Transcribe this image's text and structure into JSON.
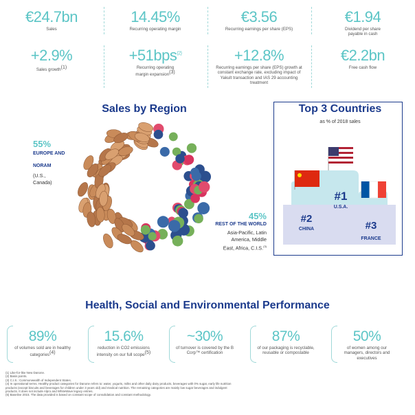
{
  "kpis": [
    {
      "value": "€24.7bn",
      "label": "Sales"
    },
    {
      "value": "14.45%",
      "label": "Recurring operating margin"
    },
    {
      "value": "€3.56",
      "label": "Recurring earnings per share (EPS)"
    },
    {
      "value": "€1.94",
      "label": "Dividend per share payable in cash"
    },
    {
      "value": "+2.9%",
      "label": "Sales growth",
      "label_sup": "(1)"
    },
    {
      "value": "+51bps",
      "value_sup": "(2)",
      "label": "Recurring operating margin expansion",
      "label_sup": "(3)"
    },
    {
      "value": "+12.8%",
      "label": "Recurring earnings per share (EPS) growth at constant exchange rate, excluding impact of Yakult transaction and IAS 29 accounting treatment"
    },
    {
      "value": "€2.2bn",
      "label": "Free cash flow"
    }
  ],
  "sales_by_region": {
    "title": "Sales by Region",
    "regions": [
      {
        "percent": "55%",
        "name": "EUROPE AND NORAM",
        "detail": "(U.S., Canada)"
      },
      {
        "percent": "45%",
        "name": "REST OF THE WORLD",
        "detail": "Asia-Pacific, Latin America, Middle East, Africa, C.I.S.",
        "detail_sup": "(3)"
      }
    ]
  },
  "top_countries": {
    "title": "Top 3 Countries",
    "subtitle": "as % of 2018 sales",
    "countries": [
      {
        "rank": "#1",
        "name": "U.S.A."
      },
      {
        "rank": "#2",
        "name": "CHINA"
      },
      {
        "rank": "#3",
        "name": "FRANCE"
      }
    ]
  },
  "health": {
    "title": "Health, Social and Environmental Performance",
    "items": [
      {
        "value": "89%",
        "label": "of volumes sold are in healthy categories",
        "label_sup": "(4)"
      },
      {
        "value": "15.6%",
        "label": "reduction in CO2 emissions intensity on our full scope",
        "label_sup": "(5)"
      },
      {
        "value": "~30%",
        "label": "of turnover is covered by the B Corp™ certification"
      },
      {
        "value": "87%",
        "label": "of our packaging is recyclable, reusable or compostable"
      },
      {
        "value": "50%",
        "label": "of women among our managers, directors and executives"
      }
    ]
  },
  "footnotes": [
    "(1) Like-for-like New Danone.",
    "(2) Basis points.",
    "(3) C.I.S.: Commonwealth of Independent States.",
    "(4) In operational terms, Healthy product categories for Danone refers to: water, yogurts, milks and other daily dairy products, beverages with 0% sugar, early life nutrition products (except biscuits and beverages for children under 3 years old) and medical nutrition. The remaining categories are mainly low sugar beverages and indulgent products. It does not include Alpro and WhiteWave legacy entries.",
    "(5) Baseline 2015. The data provided is based on constant scope of consolidation and constant methodology."
  ]
}
